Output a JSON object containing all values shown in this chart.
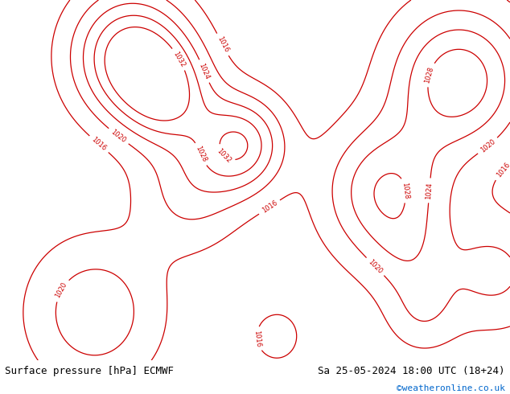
{
  "title_left": "Surface pressure [hPa] ECMWF",
  "title_right": "Sa 25-05-2024 18:00 UTC (18+24)",
  "credit": "©weatheronline.co.uk",
  "credit_color": "#0066cc",
  "bg_color": "#ffffff",
  "footer_color": "#000000",
  "ocean_color": "#d8e8f0",
  "land_color": "#c8e8a0",
  "contour_blue_color": "#0000bb",
  "contour_red_color": "#cc0000",
  "contour_black_color": "#000000",
  "figsize": [
    6.34,
    4.9
  ],
  "dpi": 100,
  "font_size_footer": 9,
  "font_size_credit": 8,
  "map_extent": [
    -28,
    42,
    27,
    72
  ],
  "lows": [
    {
      "lon": -10,
      "lat": 65,
      "strength": -22,
      "spread": 60
    },
    {
      "lon": -5,
      "lat": 60,
      "strength": -15,
      "spread": 40
    },
    {
      "lon": 5,
      "lat": 54,
      "strength": -18,
      "spread": 35
    },
    {
      "lon": -2,
      "lat": 48,
      "strength": -8,
      "spread": 50
    },
    {
      "lon": 28,
      "lat": 40,
      "strength": -5,
      "spread": 30
    },
    {
      "lon": 30,
      "lat": 33,
      "strength": -6,
      "spread": 25
    },
    {
      "lon": 10,
      "lat": 30,
      "strength": -4,
      "spread": 25
    }
  ],
  "highs": [
    {
      "lon": 35,
      "lat": 62,
      "strength": 18,
      "spread": 80
    },
    {
      "lon": 25,
      "lat": 48,
      "strength": 15,
      "spread": 70
    },
    {
      "lon": -15,
      "lat": 33,
      "strength": 10,
      "spread": 80
    },
    {
      "lon": 40,
      "lat": 38,
      "strength": 8,
      "spread": 50
    }
  ],
  "blue_levels": [
    988,
    992,
    996,
    1000,
    1004,
    1008,
    1012
  ],
  "red_levels": [
    1016,
    1020,
    1024,
    1028,
    1032
  ],
  "black_levels": [
    1013
  ]
}
